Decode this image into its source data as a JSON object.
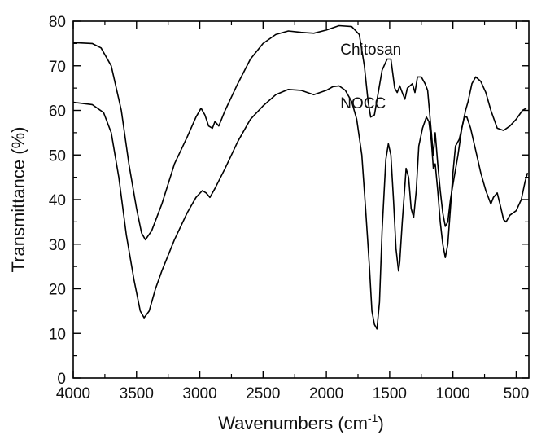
{
  "chart_data": {
    "type": "line",
    "title": "",
    "xlabel": "Wavenumbers (cm",
    "xlabel_sup": "-1",
    "xlabel_close": ")",
    "ylabel": "Transmittance (%)",
    "xlim": [
      4000,
      400
    ],
    "ylim": [
      0,
      80
    ],
    "x_reversed": true,
    "grid": false,
    "legend": "none",
    "xticks": [
      4000,
      3500,
      3000,
      2500,
      2000,
      1500,
      1000,
      500
    ],
    "xtick_labels": [
      "4000",
      "3500",
      "3000",
      "2500",
      "2000",
      "1500",
      "1000",
      "500"
    ],
    "yticks": [
      0,
      10,
      20,
      30,
      40,
      50,
      60,
      70,
      80
    ],
    "ytick_labels": [
      "0",
      "10",
      "20",
      "30",
      "40",
      "50",
      "60",
      "70",
      "80"
    ],
    "series": [
      {
        "name": "Chitosan",
        "color": "#000000",
        "points": [
          [
            4000,
            75.2
          ],
          [
            3850,
            75.0
          ],
          [
            3780,
            74.0
          ],
          [
            3700,
            70.0
          ],
          [
            3620,
            60.0
          ],
          [
            3560,
            48.0
          ],
          [
            3500,
            38.0
          ],
          [
            3460,
            32.5
          ],
          [
            3430,
            31.0
          ],
          [
            3380,
            33.0
          ],
          [
            3300,
            39.0
          ],
          [
            3200,
            48.0
          ],
          [
            3100,
            54.0
          ],
          [
            3030,
            58.5
          ],
          [
            2990,
            60.5
          ],
          [
            2960,
            59.0
          ],
          [
            2930,
            56.5
          ],
          [
            2900,
            56.0
          ],
          [
            2880,
            57.5
          ],
          [
            2850,
            56.5
          ],
          [
            2800,
            60.0
          ],
          [
            2700,
            66.0
          ],
          [
            2600,
            71.5
          ],
          [
            2500,
            75.0
          ],
          [
            2400,
            77.0
          ],
          [
            2300,
            77.8
          ],
          [
            2200,
            77.5
          ],
          [
            2100,
            77.3
          ],
          [
            2000,
            78.0
          ],
          [
            1900,
            79.0
          ],
          [
            1800,
            78.8
          ],
          [
            1740,
            77.0
          ],
          [
            1700,
            70.0
          ],
          [
            1670,
            62.0
          ],
          [
            1650,
            58.5
          ],
          [
            1620,
            59.0
          ],
          [
            1590,
            64.0
          ],
          [
            1560,
            69.0
          ],
          [
            1520,
            71.5
          ],
          [
            1490,
            71.5
          ],
          [
            1460,
            65.0
          ],
          [
            1440,
            64.0
          ],
          [
            1420,
            65.5
          ],
          [
            1400,
            64.0
          ],
          [
            1380,
            62.5
          ],
          [
            1360,
            65.0
          ],
          [
            1320,
            66.0
          ],
          [
            1300,
            64.0
          ],
          [
            1280,
            67.5
          ],
          [
            1250,
            67.5
          ],
          [
            1220,
            66.0
          ],
          [
            1200,
            64.5
          ],
          [
            1180,
            58.0
          ],
          [
            1155,
            50.0
          ],
          [
            1140,
            55.0
          ],
          [
            1120,
            48.0
          ],
          [
            1100,
            42.0
          ],
          [
            1080,
            37.0
          ],
          [
            1060,
            34.0
          ],
          [
            1040,
            35.0
          ],
          [
            1020,
            40.0
          ],
          [
            990,
            45.0
          ],
          [
            960,
            50.0
          ],
          [
            930,
            56.0
          ],
          [
            900,
            60.0
          ],
          [
            880,
            62.0
          ],
          [
            850,
            66.0
          ],
          [
            820,
            67.5
          ],
          [
            780,
            66.5
          ],
          [
            740,
            64.0
          ],
          [
            700,
            60.0
          ],
          [
            650,
            56.0
          ],
          [
            600,
            55.5
          ],
          [
            550,
            56.5
          ],
          [
            500,
            58.0
          ],
          [
            450,
            60.0
          ],
          [
            420,
            60.5
          ]
        ]
      },
      {
        "name": "NOCC",
        "color": "#000000",
        "points": [
          [
            4000,
            61.8
          ],
          [
            3850,
            61.3
          ],
          [
            3760,
            59.5
          ],
          [
            3700,
            55.0
          ],
          [
            3640,
            45.0
          ],
          [
            3580,
            32.0
          ],
          [
            3520,
            22.0
          ],
          [
            3470,
            15.0
          ],
          [
            3440,
            13.5
          ],
          [
            3400,
            15.0
          ],
          [
            3350,
            20.0
          ],
          [
            3300,
            24.0
          ],
          [
            3200,
            31.0
          ],
          [
            3100,
            37.0
          ],
          [
            3030,
            40.5
          ],
          [
            2980,
            42.0
          ],
          [
            2950,
            41.5
          ],
          [
            2920,
            40.5
          ],
          [
            2880,
            42.5
          ],
          [
            2800,
            47.0
          ],
          [
            2700,
            53.0
          ],
          [
            2600,
            58.0
          ],
          [
            2500,
            61.0
          ],
          [
            2400,
            63.5
          ],
          [
            2300,
            64.7
          ],
          [
            2200,
            64.5
          ],
          [
            2100,
            63.5
          ],
          [
            2000,
            64.5
          ],
          [
            1950,
            65.3
          ],
          [
            1900,
            65.5
          ],
          [
            1850,
            64.5
          ],
          [
            1800,
            62.0
          ],
          [
            1760,
            58.0
          ],
          [
            1720,
            50.0
          ],
          [
            1690,
            38.0
          ],
          [
            1660,
            25.0
          ],
          [
            1640,
            15.0
          ],
          [
            1620,
            12.0
          ],
          [
            1600,
            11.0
          ],
          [
            1580,
            17.0
          ],
          [
            1560,
            33.0
          ],
          [
            1530,
            49.0
          ],
          [
            1510,
            52.5
          ],
          [
            1490,
            50.0
          ],
          [
            1470,
            40.0
          ],
          [
            1450,
            29.0
          ],
          [
            1430,
            24.0
          ],
          [
            1420,
            26.0
          ],
          [
            1400,
            35.0
          ],
          [
            1380,
            43.0
          ],
          [
            1370,
            47.0
          ],
          [
            1350,
            45.0
          ],
          [
            1330,
            38.0
          ],
          [
            1310,
            36.0
          ],
          [
            1290,
            42.0
          ],
          [
            1270,
            52.0
          ],
          [
            1240,
            56.0
          ],
          [
            1210,
            58.5
          ],
          [
            1190,
            57.5
          ],
          [
            1170,
            53.0
          ],
          [
            1155,
            47.0
          ],
          [
            1140,
            48.0
          ],
          [
            1120,
            42.0
          ],
          [
            1100,
            35.0
          ],
          [
            1080,
            30.0
          ],
          [
            1060,
            27.0
          ],
          [
            1040,
            30.0
          ],
          [
            1020,
            38.0
          ],
          [
            1000,
            46.0
          ],
          [
            980,
            52.0
          ],
          [
            950,
            53.5
          ],
          [
            930,
            56.0
          ],
          [
            910,
            58.5
          ],
          [
            890,
            58.5
          ],
          [
            860,
            56.0
          ],
          [
            820,
            51.0
          ],
          [
            780,
            46.0
          ],
          [
            740,
            42.0
          ],
          [
            700,
            39.0
          ],
          [
            680,
            40.5
          ],
          [
            650,
            41.5
          ],
          [
            620,
            38.0
          ],
          [
            600,
            35.5
          ],
          [
            580,
            35.0
          ],
          [
            550,
            36.5
          ],
          [
            500,
            37.5
          ],
          [
            460,
            40.0
          ],
          [
            430,
            44.0
          ],
          [
            410,
            46.0
          ]
        ]
      }
    ],
    "annotations": [
      {
        "text": "Chitosan",
        "x": 1890,
        "y": 72.5
      },
      {
        "text": "NOCC",
        "x": 1890,
        "y": 60.5
      }
    ]
  }
}
